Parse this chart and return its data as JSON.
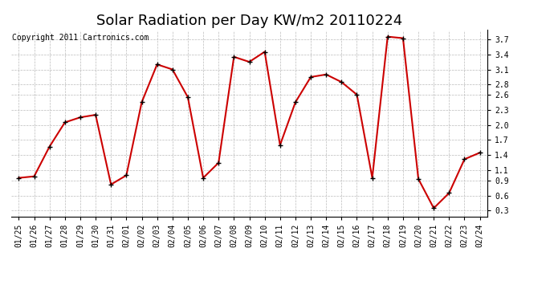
{
  "title": "Solar Radiation per Day KW/m2 20110224",
  "copyright": "Copyright 2011 Cartronics.com",
  "dates": [
    "01/25",
    "01/26",
    "01/27",
    "01/28",
    "01/29",
    "01/30",
    "01/31",
    "02/01",
    "02/02",
    "02/03",
    "02/04",
    "02/05",
    "02/06",
    "02/07",
    "02/08",
    "02/09",
    "02/10",
    "02/11",
    "02/12",
    "02/13",
    "02/14",
    "02/15",
    "02/16",
    "02/17",
    "02/18",
    "02/19",
    "02/20",
    "02/21",
    "02/22",
    "02/23",
    "02/24"
  ],
  "values": [
    0.95,
    0.98,
    1.57,
    2.05,
    2.15,
    2.2,
    0.82,
    1.0,
    2.45,
    3.2,
    3.1,
    2.55,
    0.95,
    1.25,
    3.35,
    3.25,
    3.45,
    1.6,
    2.45,
    2.95,
    3.0,
    2.85,
    2.6,
    0.95,
    3.75,
    3.72,
    0.93,
    0.35,
    0.65,
    1.32,
    1.45
  ],
  "line_color": "#cc0000",
  "marker_color": "#000000",
  "bg_color": "#ffffff",
  "grid_color": "#bbbbbb",
  "yticks": [
    0.3,
    0.6,
    0.9,
    1.1,
    1.4,
    1.7,
    2.0,
    2.3,
    2.6,
    2.8,
    3.1,
    3.4,
    3.7
  ],
  "ylim": [
    0.18,
    3.88
  ],
  "title_fontsize": 13,
  "copyright_fontsize": 7,
  "tick_fontsize": 7,
  "ytick_fontsize": 7
}
